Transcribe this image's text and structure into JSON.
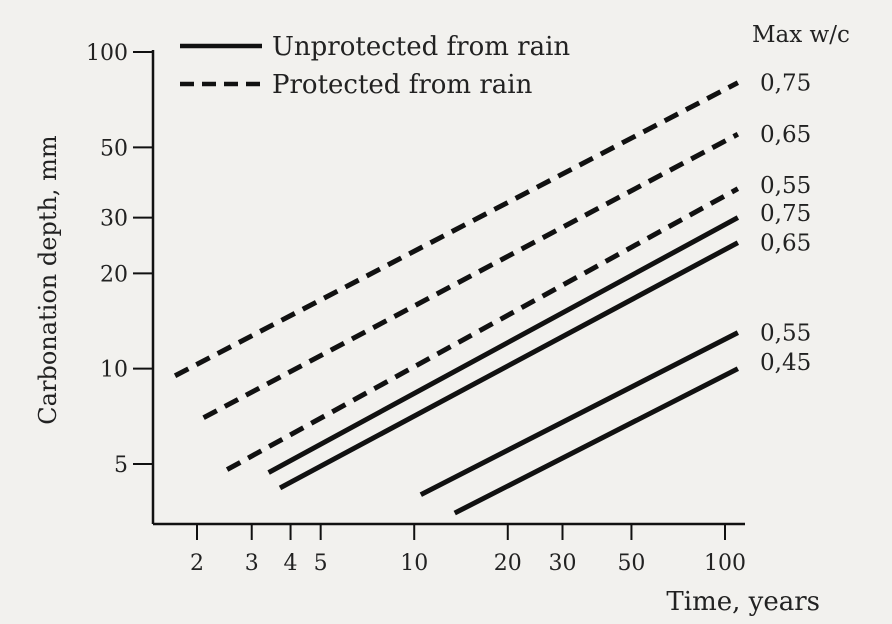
{
  "chart_data": {
    "type": "line",
    "ylabel": "Carbonation depth, mm",
    "xlabel": "Time, years",
    "xscale": "log",
    "yscale": "log",
    "xlim": [
      1.6,
      120
    ],
    "ylim": [
      3.5,
      100
    ],
    "xticks": [
      2,
      3,
      4,
      5,
      10,
      20,
      30,
      50,
      100
    ],
    "yticks": [
      5,
      10,
      20,
      30,
      50,
      100
    ],
    "legend": {
      "position": "top-left",
      "entries": [
        {
          "label": "Unprotected from rain",
          "style": "solid"
        },
        {
          "label": "Protected from rain",
          "style": "dashed"
        }
      ]
    },
    "end_label_header": "Max w/c",
    "series": [
      {
        "label": "0,75",
        "style": "dashed",
        "x": [
          1.7,
          110
        ],
        "y": [
          9.5,
          80
        ]
      },
      {
        "label": "0,65",
        "style": "dashed",
        "x": [
          2.1,
          110
        ],
        "y": [
          7.0,
          55
        ]
      },
      {
        "label": "0,55",
        "style": "dashed",
        "x": [
          2.5,
          110
        ],
        "y": [
          4.8,
          37
        ]
      },
      {
        "label": "0,75",
        "style": "solid",
        "x": [
          3.4,
          110
        ],
        "y": [
          4.7,
          30
        ]
      },
      {
        "label": "0,65",
        "style": "solid",
        "x": [
          3.7,
          110
        ],
        "y": [
          4.2,
          25
        ]
      },
      {
        "label": "0,55",
        "style": "solid",
        "x": [
          10.5,
          110
        ],
        "y": [
          4.0,
          13
        ]
      },
      {
        "label": "0,45",
        "style": "solid",
        "x": [
          13.5,
          110
        ],
        "y": [
          3.5,
          10
        ]
      }
    ],
    "end_label_y": [
      80,
      55,
      38,
      31,
      25,
      13,
      10.5
    ]
  }
}
